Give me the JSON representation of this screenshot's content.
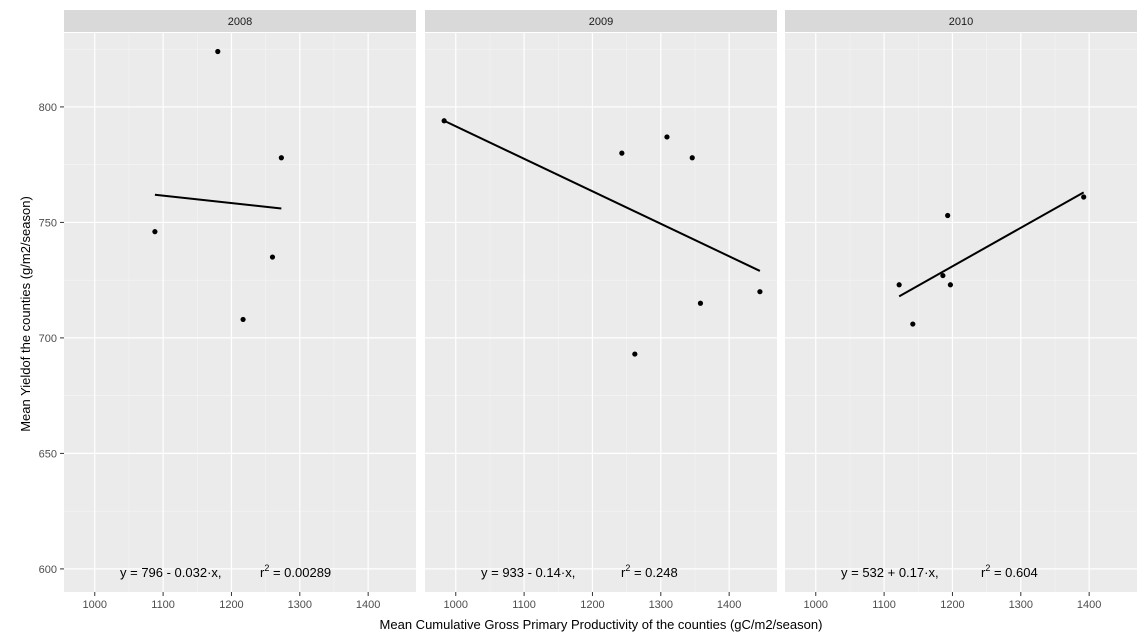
{
  "chart_data": {
    "type": "scatter",
    "facet_by": "year",
    "xlabel": "Mean Cumulative Gross Primary Productivity of the counties (gC/m2/season)",
    "ylabel": "Mean Yieldof the counties (g/m2/season)",
    "xlim": [
      955,
      1470
    ],
    "ylim": [
      590,
      832
    ],
    "x_ticks": [
      1000,
      1100,
      1200,
      1300,
      1400
    ],
    "y_ticks": [
      600,
      650,
      700,
      750,
      800
    ],
    "grid": true,
    "panels": [
      {
        "label": "2008",
        "x": [
          1088,
          1180,
          1217,
          1260,
          1273
        ],
        "y": [
          746,
          824,
          708,
          735,
          778
        ],
        "trend": {
          "x": [
            1088,
            1273
          ],
          "y": [
            762,
            756
          ]
        },
        "equation": {
          "lhs": "y = 796 - 0.032·x,",
          "r2_prefix": "r",
          "r2_exp": "2",
          "r2_value": " = 0.00289"
        }
      },
      {
        "label": "2009",
        "x": [
          983,
          1243,
          1262,
          1309,
          1346,
          1358,
          1445
        ],
        "y": [
          794,
          780,
          693,
          787,
          778,
          715,
          720
        ],
        "trend": {
          "x": [
            983,
            1445
          ],
          "y": [
            794,
            729
          ]
        },
        "equation": {
          "lhs": "y = 933 - 0.14·x,",
          "r2_prefix": "r",
          "r2_exp": "2",
          "r2_value": " = 0.248"
        }
      },
      {
        "label": "2010",
        "x": [
          1122,
          1142,
          1186,
          1193,
          1197,
          1392
        ],
        "y": [
          723,
          706,
          727,
          753,
          723,
          761
        ],
        "trend": {
          "x": [
            1122,
            1392
          ],
          "y": [
            718,
            763
          ]
        },
        "equation": {
          "lhs": "y = 532 + 0.17·x,",
          "r2_prefix": "r",
          "r2_exp": "2",
          "r2_value": " = 0.604"
        }
      }
    ]
  }
}
